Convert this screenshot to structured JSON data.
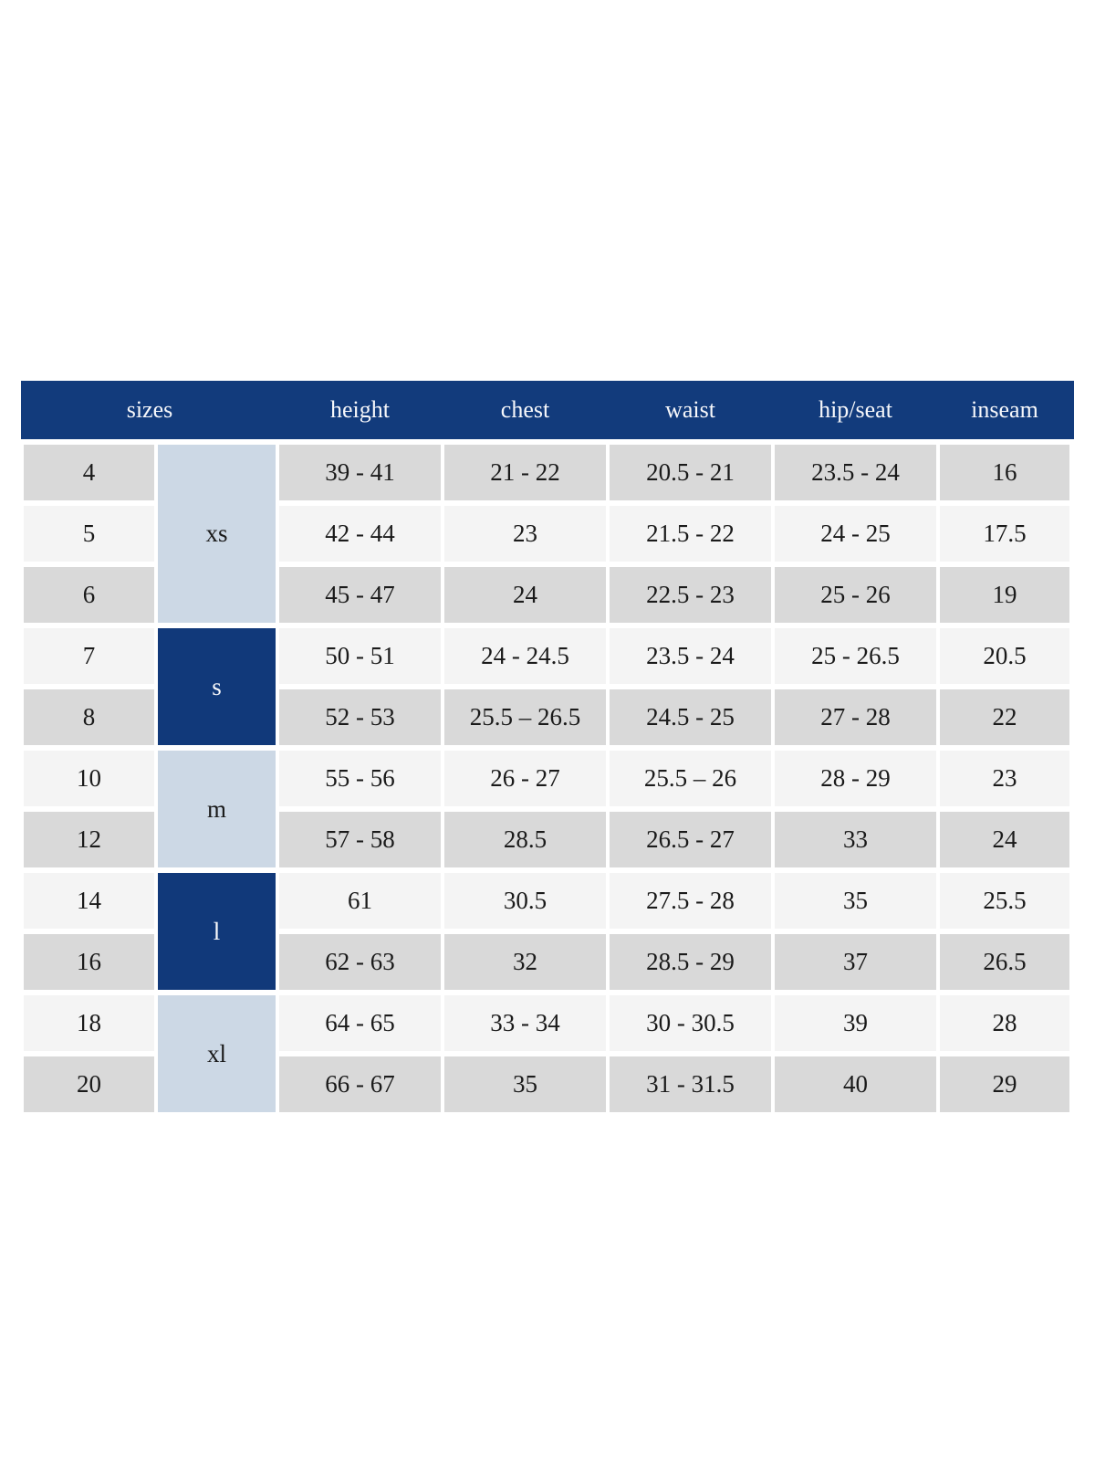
{
  "colors": {
    "header_bg": "#123b7c",
    "group_dark_bg": "#11397a",
    "group_light_bg": "#ccd8e5",
    "row_dark": "#d9d9d9",
    "row_light": "#f4f4f4",
    "header_text": "#f7f8fb",
    "body_text": "#1a1a1a",
    "page_bg": "#ffffff"
  },
  "chart_data": {
    "type": "table",
    "columns": [
      "sizes",
      "height",
      "chest",
      "waist",
      "hip/seat",
      "inseam"
    ],
    "size_groups": [
      {
        "label": "xs",
        "sizes": [
          "4",
          "5",
          "6"
        ],
        "shade": "light"
      },
      {
        "label": "s",
        "sizes": [
          "7",
          "8"
        ],
        "shade": "dark"
      },
      {
        "label": "m",
        "sizes": [
          "10",
          "12"
        ],
        "shade": "light"
      },
      {
        "label": "l",
        "sizes": [
          "14",
          "16"
        ],
        "shade": "dark"
      },
      {
        "label": "xl",
        "sizes": [
          "18",
          "20"
        ],
        "shade": "light"
      }
    ],
    "rows": [
      {
        "size": "4",
        "height": "39 - 41",
        "chest": "21 - 22",
        "waist": "20.5 - 21",
        "hip_seat": "23.5 - 24",
        "inseam": "16"
      },
      {
        "size": "5",
        "height": "42 - 44",
        "chest": "23",
        "waist": "21.5 - 22",
        "hip_seat": "24 - 25",
        "inseam": "17.5"
      },
      {
        "size": "6",
        "height": "45 - 47",
        "chest": "24",
        "waist": "22.5 - 23",
        "hip_seat": "25 - 26",
        "inseam": "19"
      },
      {
        "size": "7",
        "height": "50 - 51",
        "chest": "24 - 24.5",
        "waist": "23.5 - 24",
        "hip_seat": "25 - 26.5",
        "inseam": "20.5"
      },
      {
        "size": "8",
        "height": "52 - 53",
        "chest": "25.5 – 26.5",
        "waist": "24.5 - 25",
        "hip_seat": "27 - 28",
        "inseam": "22"
      },
      {
        "size": "10",
        "height": "55 - 56",
        "chest": "26 - 27",
        "waist": "25.5 – 26",
        "hip_seat": "28 - 29",
        "inseam": "23"
      },
      {
        "size": "12",
        "height": "57 - 58",
        "chest": "28.5",
        "waist": "26.5 - 27",
        "hip_seat": "33",
        "inseam": "24"
      },
      {
        "size": "14",
        "height": "61",
        "chest": "30.5",
        "waist": "27.5 - 28",
        "hip_seat": "35",
        "inseam": "25.5"
      },
      {
        "size": "16",
        "height": "62 - 63",
        "chest": "32",
        "waist": "28.5 - 29",
        "hip_seat": "37",
        "inseam": "26.5"
      },
      {
        "size": "18",
        "height": "64 - 65",
        "chest": "33 - 34",
        "waist": "30 - 30.5",
        "hip_seat": "39",
        "inseam": "28"
      },
      {
        "size": "20",
        "height": "66 - 67",
        "chest": "35",
        "waist": "31 - 31.5",
        "hip_seat": "40",
        "inseam": "29"
      }
    ]
  }
}
